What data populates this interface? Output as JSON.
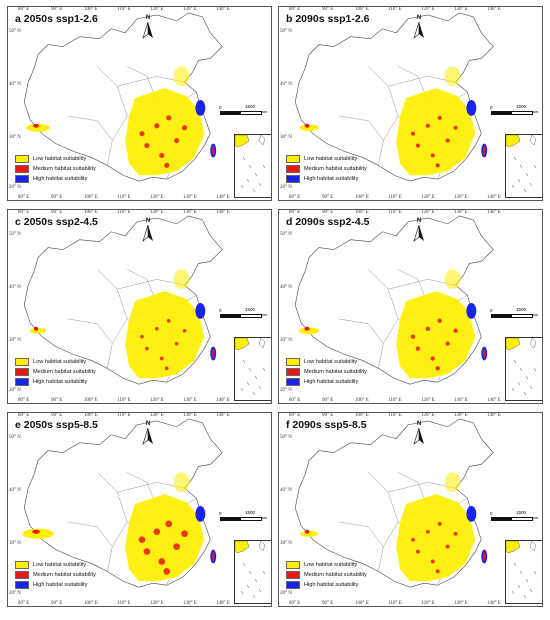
{
  "panels": [
    {
      "id": "a",
      "title": "a  2050s  ssp1-2.6",
      "level": 1.0
    },
    {
      "id": "b",
      "title": "b  2090s  ssp1-2.6",
      "level": 0.8
    },
    {
      "id": "c",
      "title": "c  2050s  ssp2-4.5",
      "level": 0.7
    },
    {
      "id": "d",
      "title": "d  2090s  ssp2-4.5",
      "level": 0.85
    },
    {
      "id": "e",
      "title": "e  2050s  ssp5-8.5",
      "level": 1.3
    },
    {
      "id": "f",
      "title": "f  2090s  ssp5-8.5",
      "level": 0.75
    }
  ],
  "legend": [
    {
      "label": "Low habitat suitability",
      "color": "#ffef00"
    },
    {
      "label": "Medium habitat suitability",
      "color": "#e81818"
    },
    {
      "label": "High habitat suitability",
      "color": "#1a24e8"
    }
  ],
  "north_label": "N",
  "scale": {
    "zero": "0",
    "max": "1500",
    "unit": "km"
  },
  "ticks": {
    "top": [
      "80° E",
      "90° E",
      "100° E",
      "110° E",
      "120° E",
      "130° E",
      "140° E"
    ],
    "left": [
      "50° N",
      "40° N",
      "30° N",
      "20° N"
    ],
    "bottom": [
      "80° E",
      "90° E",
      "100° E",
      "110° E",
      "120° E",
      "130° E",
      "140° E"
    ]
  }
}
